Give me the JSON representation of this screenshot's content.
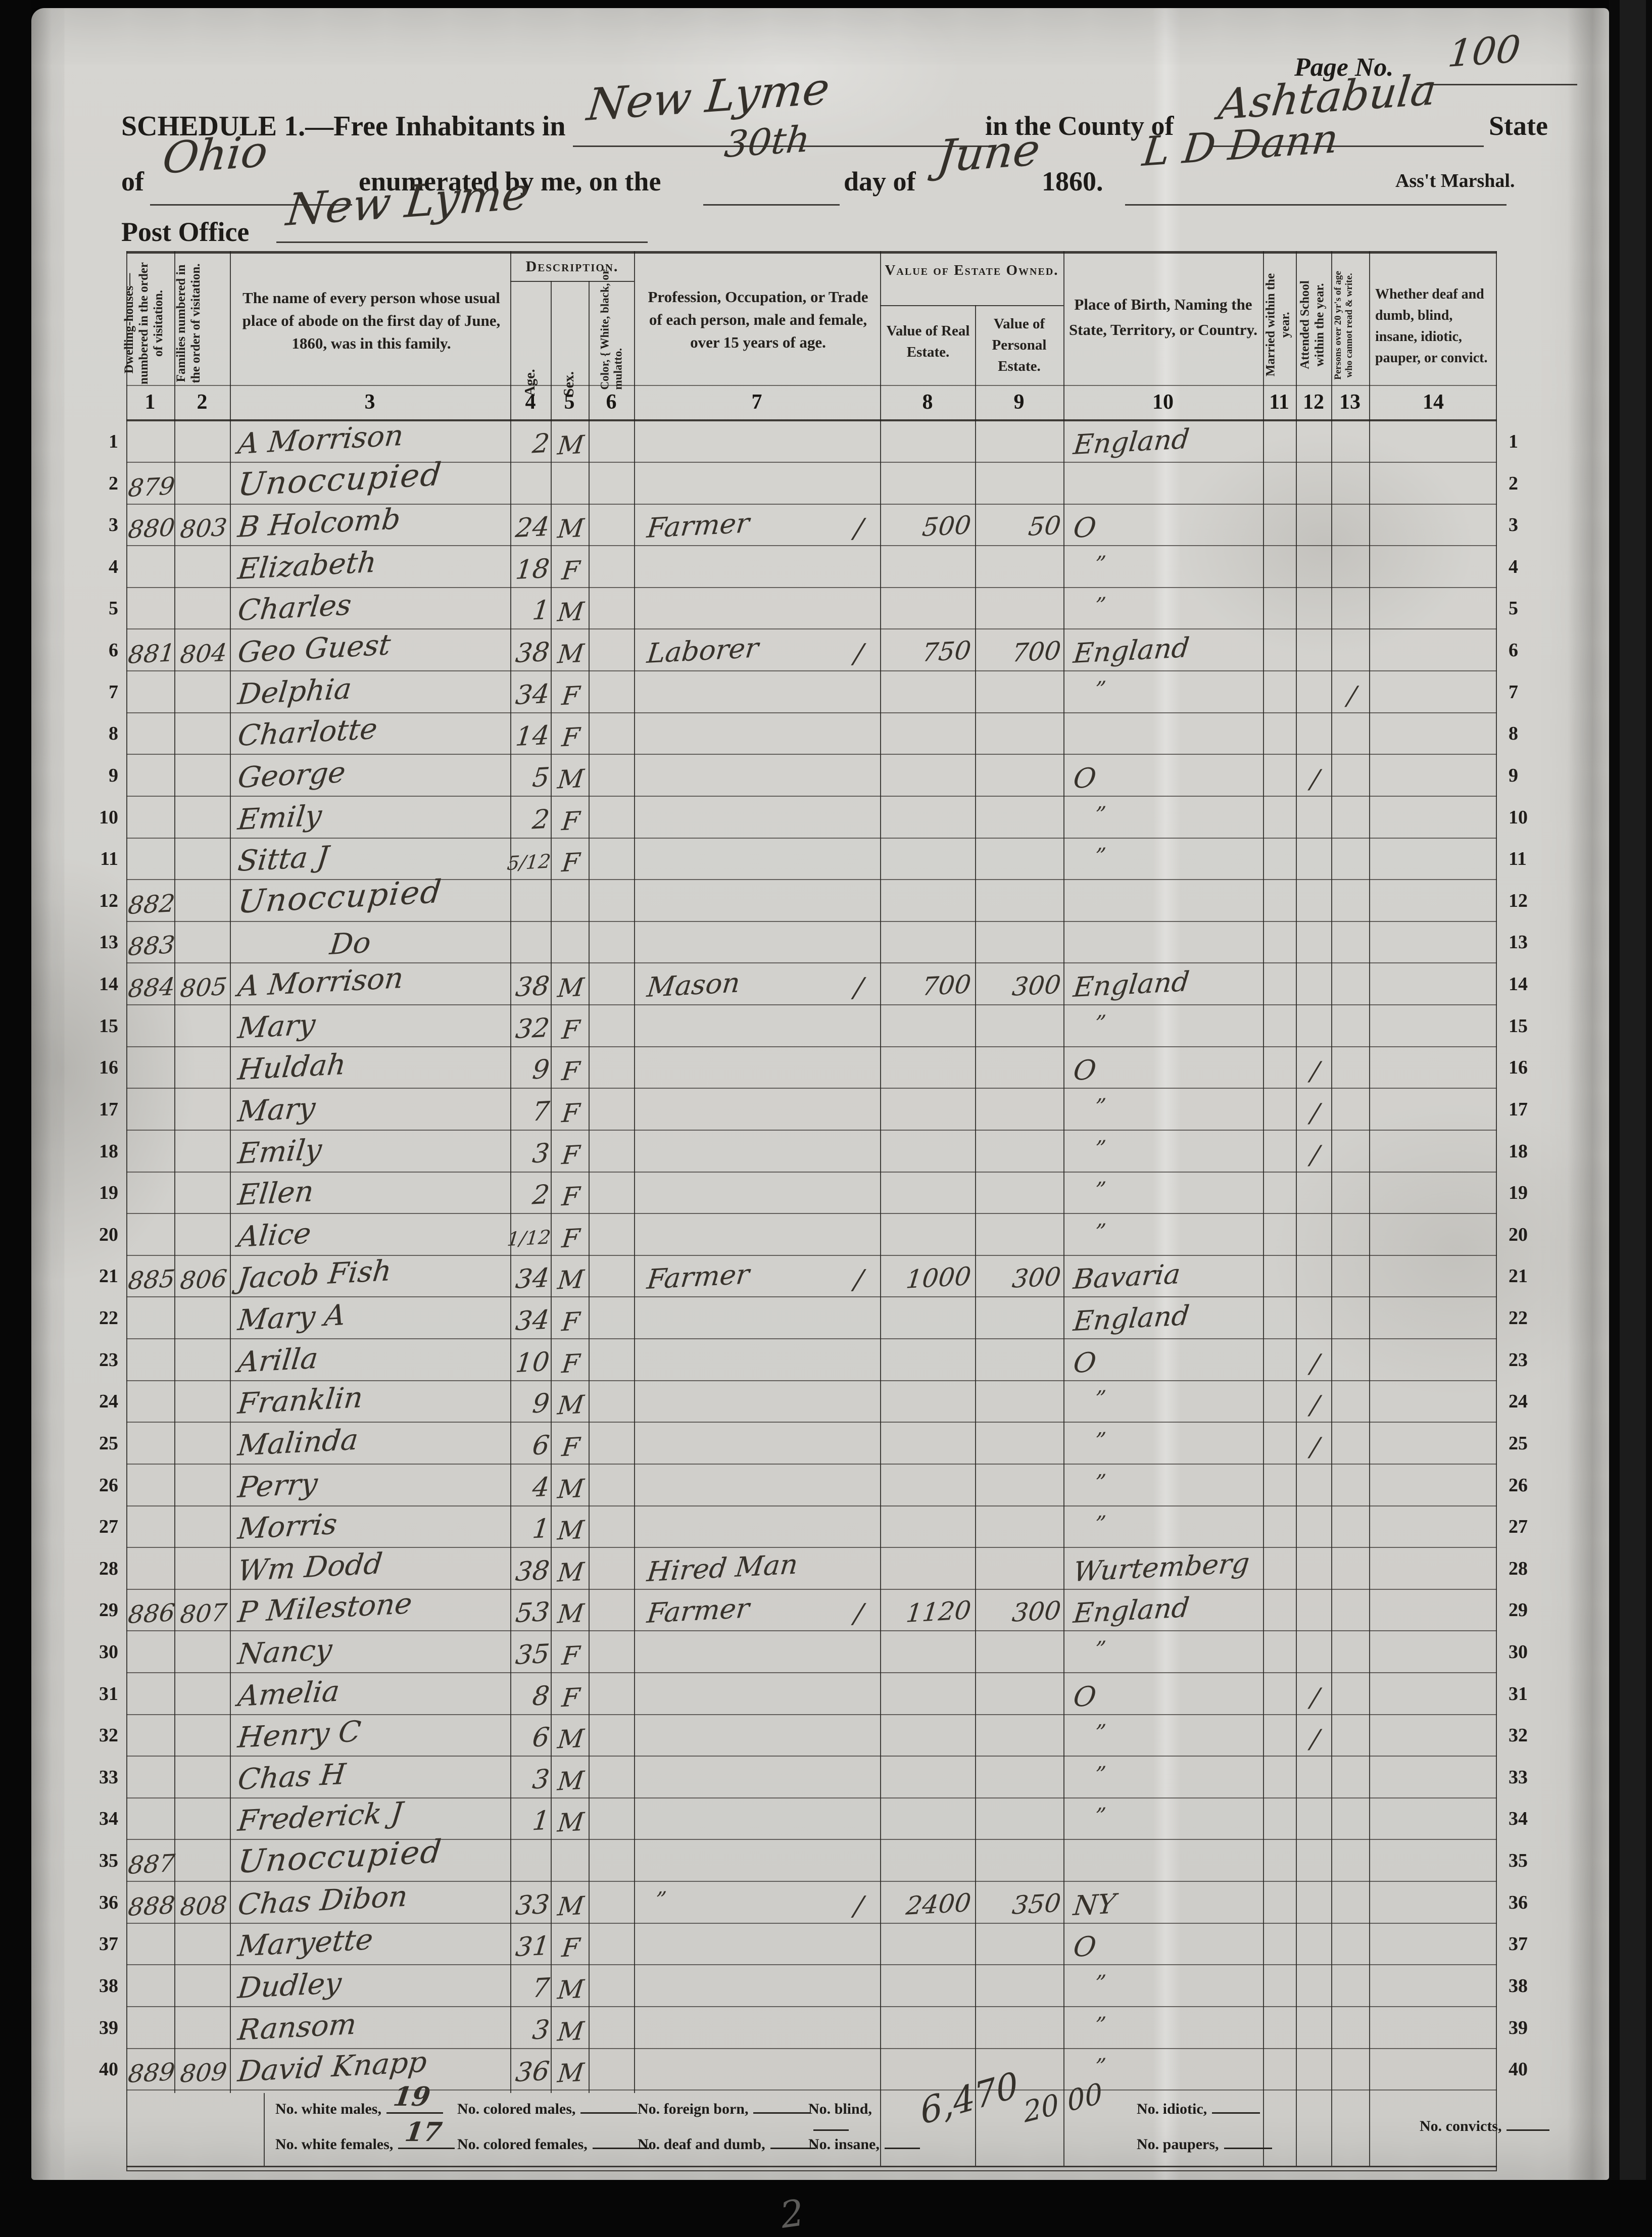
{
  "header": {
    "page_no_label": "Page No.",
    "page_no_value": "100",
    "title": "SCHEDULE 1.—Free Inhabitants in",
    "township_value": "New Lyme",
    "county_label": "in the County of",
    "county_value": "Ashtabula",
    "state_word": "State",
    "of_label": "of",
    "state_value": "Ohio",
    "enumerated_label": "enumerated by me, on the",
    "day_value": "30th",
    "day_of_label": "day of",
    "month_value": "June",
    "year_label": "1860.",
    "marshal_signature": "L D Dann",
    "marshal_label": "Ass't Marshal.",
    "post_office_label": "Post Office",
    "post_office_value": "New Lyme"
  },
  "table": {
    "group_headers": {
      "description": "Description.",
      "estate": "Value of Estate Owned."
    },
    "columns": [
      {
        "num": "1",
        "label": "Dwelling-houses— numbered in the order of visitation."
      },
      {
        "num": "2",
        "label": "Families numbered in the order of visitation."
      },
      {
        "num": "3",
        "label": "The name of every person whose usual place of abode on the first day of June, 1860, was in this family."
      },
      {
        "num": "4",
        "label": "Age."
      },
      {
        "num": "5",
        "label": "Sex."
      },
      {
        "num": "6",
        "label": "Color, { White, black, or mulatto."
      },
      {
        "num": "7",
        "label": "Profession, Occupation, or Trade of each person, male and female, over 15 years of age."
      },
      {
        "num": "8",
        "label": "Value of Real Estate."
      },
      {
        "num": "9",
        "label": "Value of Personal Estate."
      },
      {
        "num": "10",
        "label": "Place of Birth, Naming the State, Territory, or Country."
      },
      {
        "num": "11",
        "label": "Married within the year."
      },
      {
        "num": "12",
        "label": "Attended School within the year."
      },
      {
        "num": "13",
        "label": "Persons over 20 yr's of age who cannot read & write."
      },
      {
        "num": "14",
        "label": "Whether deaf and dumb, blind, insane, idiotic, pauper, or convict."
      }
    ],
    "rows": [
      {
        "line": "1",
        "name": "A Morrison",
        "age": "2",
        "sex": "M",
        "birthplace": "England"
      },
      {
        "line": "2",
        "dwelling": "879",
        "name": "Unoccupied",
        "unoccupied": true
      },
      {
        "line": "3",
        "dwelling": "880",
        "family": "803",
        "name": "B Holcomb",
        "age": "24",
        "sex": "M",
        "occupation": "Farmer",
        "tick": "/",
        "real_estate": "500",
        "personal_estate": "50",
        "birthplace": "O"
      },
      {
        "line": "4",
        "name": "Elizabeth",
        "age": "18",
        "sex": "F",
        "birthplace": "”"
      },
      {
        "line": "5",
        "name": "Charles",
        "age": "1",
        "sex": "M",
        "birthplace": "”"
      },
      {
        "line": "6",
        "dwelling": "881",
        "family": "804",
        "name": "Geo Guest",
        "age": "38",
        "sex": "M",
        "occupation": "Laborer",
        "tick": "/",
        "real_estate": "750",
        "personal_estate": "700",
        "birthplace": "England"
      },
      {
        "line": "7",
        "name": "Delphia",
        "age": "34",
        "sex": "F",
        "birthplace": "”",
        "cannot_read": "/"
      },
      {
        "line": "8",
        "name": "Charlotte",
        "age": "14",
        "sex": "F"
      },
      {
        "line": "9",
        "name": "George",
        "age": "5",
        "sex": "M",
        "birthplace": "O",
        "school": "/"
      },
      {
        "line": "10",
        "name": "Emily",
        "age": "2",
        "sex": "F",
        "birthplace": "”"
      },
      {
        "line": "11",
        "name": "Sitta J",
        "age": "5/12",
        "sex": "F",
        "birthplace": "”"
      },
      {
        "line": "12",
        "dwelling": "882",
        "name": "Unoccupied",
        "unoccupied": true
      },
      {
        "line": "13",
        "dwelling": "883",
        "name": "Do"
      },
      {
        "line": "14",
        "dwelling": "884",
        "family": "805",
        "name": "A Morrison",
        "age": "38",
        "sex": "M",
        "occupation": "Mason",
        "tick": "/",
        "real_estate": "700",
        "personal_estate": "300",
        "birthplace": "England"
      },
      {
        "line": "15",
        "name": "Mary",
        "age": "32",
        "sex": "F",
        "birthplace": "”"
      },
      {
        "line": "16",
        "name": "Huldah",
        "age": "9",
        "sex": "F",
        "birthplace": "O",
        "school": "/"
      },
      {
        "line": "17",
        "name": "Mary",
        "age": "7",
        "sex": "F",
        "birthplace": "”",
        "school": "/"
      },
      {
        "line": "18",
        "name": "Emily",
        "age": "3",
        "sex": "F",
        "birthplace": "”",
        "school": "/"
      },
      {
        "line": "19",
        "name": "Ellen",
        "age": "2",
        "sex": "F",
        "birthplace": "”"
      },
      {
        "line": "20",
        "name": "Alice",
        "age": "1/12",
        "sex": "F",
        "birthplace": "”"
      },
      {
        "line": "21",
        "dwelling": "885",
        "family": "806",
        "name": "Jacob Fish",
        "age": "34",
        "sex": "M",
        "occupation": "Farmer",
        "tick": "/",
        "real_estate": "1000",
        "personal_estate": "300",
        "birthplace": "Bavaria"
      },
      {
        "line": "22",
        "name": "Mary A",
        "age": "34",
        "sex": "F",
        "birthplace": "England"
      },
      {
        "line": "23",
        "name": "Arilla",
        "age": "10",
        "sex": "F",
        "birthplace": "O",
        "school": "/"
      },
      {
        "line": "24",
        "name": "Franklin",
        "age": "9",
        "sex": "M",
        "birthplace": "”",
        "school": "/"
      },
      {
        "line": "25",
        "name": "Malinda",
        "age": "6",
        "sex": "F",
        "birthplace": "”",
        "school": "/"
      },
      {
        "line": "26",
        "name": "Perry",
        "age": "4",
        "sex": "M",
        "birthplace": "”"
      },
      {
        "line": "27",
        "name": "Morris",
        "age": "1",
        "sex": "M",
        "birthplace": "”"
      },
      {
        "line": "28",
        "name": "Wm Dodd",
        "age": "38",
        "sex": "M",
        "occupation": "Hired Man",
        "birthplace": "Wurtemberg"
      },
      {
        "line": "29",
        "dwelling": "886",
        "family": "807",
        "name": "P Milestone",
        "age": "53",
        "sex": "M",
        "occupation": "Farmer",
        "tick": "/",
        "real_estate": "1120",
        "personal_estate": "300",
        "birthplace": "England"
      },
      {
        "line": "30",
        "name": "Nancy",
        "age": "35",
        "sex": "F",
        "birthplace": "”"
      },
      {
        "line": "31",
        "name": "Amelia",
        "age": "8",
        "sex": "F",
        "birthplace": "O",
        "school": "/"
      },
      {
        "line": "32",
        "name": "Henry C",
        "age": "6",
        "sex": "M",
        "birthplace": "”",
        "school": "/"
      },
      {
        "line": "33",
        "name": "Chas H",
        "age": "3",
        "sex": "M",
        "birthplace": "”"
      },
      {
        "line": "34",
        "name": "Frederick J",
        "age": "1",
        "sex": "M",
        "birthplace": "”"
      },
      {
        "line": "35",
        "dwelling": "887",
        "name": "Unoccupied",
        "unoccupied": true
      },
      {
        "line": "36",
        "dwelling": "888",
        "family": "808",
        "name": "Chas Dibon",
        "age": "33",
        "sex": "M",
        "occupation": "”",
        "tick": "/",
        "real_estate": "2400",
        "personal_estate": "350",
        "birthplace": "NY"
      },
      {
        "line": "37",
        "name": "Maryette",
        "age": "31",
        "sex": "F",
        "birthplace": "O"
      },
      {
        "line": "38",
        "name": "Dudley",
        "age": "7",
        "sex": "M",
        "birthplace": "”"
      },
      {
        "line": "39",
        "name": "Ransom",
        "age": "3",
        "sex": "M",
        "birthplace": "”"
      },
      {
        "line": "40",
        "dwelling": "889",
        "family": "809",
        "name": "David Knapp",
        "age": "36",
        "sex": "M",
        "birthplace": "”"
      }
    ]
  },
  "footer": {
    "fields_row1": [
      {
        "label": "No. white males,",
        "value": "19"
      },
      {
        "label": "No. colored males,",
        "value": ""
      },
      {
        "label": "No. foreign born,",
        "value": ""
      },
      {
        "label": "No. blind,",
        "value": ""
      }
    ],
    "fields_row2": [
      {
        "label": "No. white females,",
        "value": "17"
      },
      {
        "label": "No. colored females,",
        "value": ""
      },
      {
        "label": "No. deaf and dumb,",
        "value": ""
      },
      {
        "label": "No. insane,",
        "value": ""
      }
    ],
    "totals": {
      "real_estate": "6,470",
      "personal_estate": "20 00"
    },
    "right_fields": [
      {
        "label": "No. idiotic,",
        "value": ""
      },
      {
        "label": "No. paupers,",
        "value": ""
      }
    ],
    "convicts_label": "No. convicts,",
    "bottom_mark": "2"
  }
}
